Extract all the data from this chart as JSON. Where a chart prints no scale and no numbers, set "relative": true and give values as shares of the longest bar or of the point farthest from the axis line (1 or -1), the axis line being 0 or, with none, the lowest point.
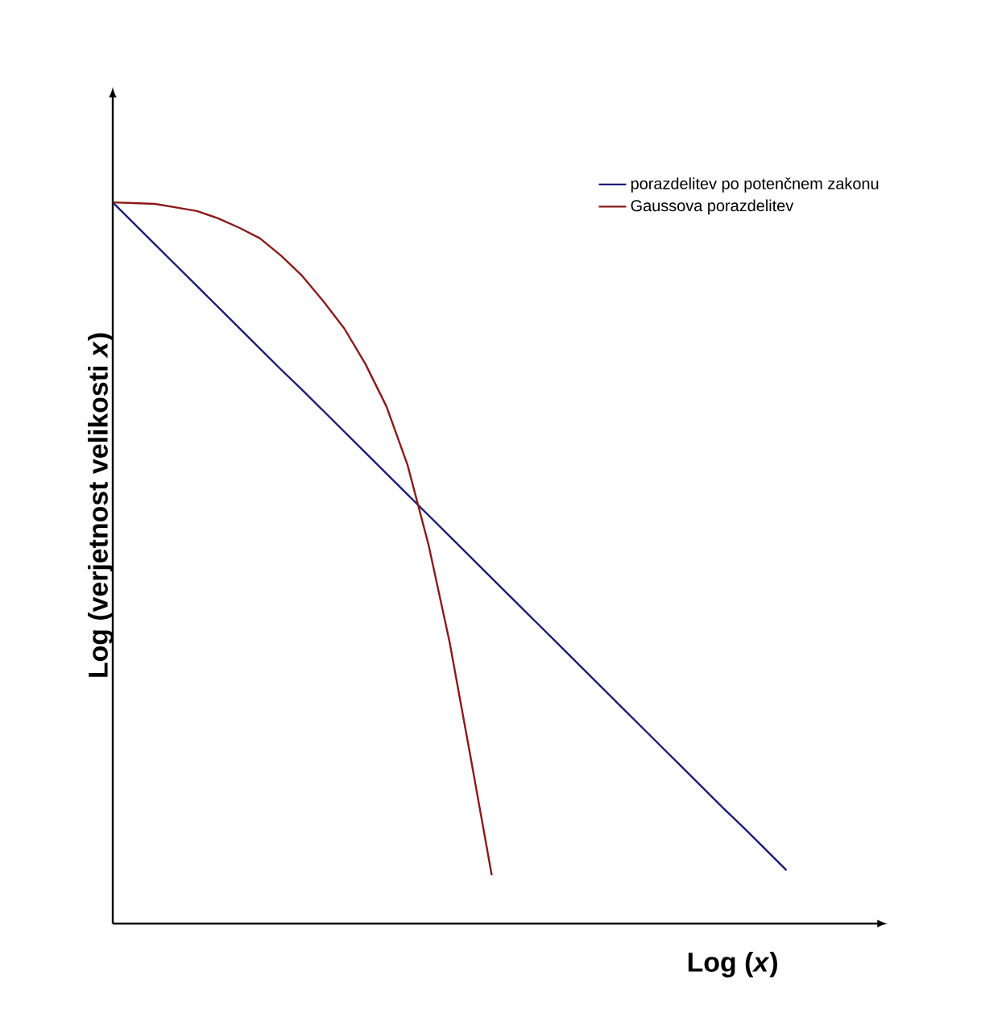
{
  "chart_data": {
    "type": "line",
    "relative": true,
    "xlabel": "Log (*x*)",
    "ylabel": "Log (verjetnost velikosti *x*)",
    "legend": "top right",
    "tick_labels": false,
    "categories": [
      null,
      null,
      null,
      null,
      null,
      null,
      null,
      null,
      null,
      null,
      null,
      null,
      null,
      null,
      null,
      null,
      null,
      null,
      null,
      null,
      null,
      null,
      null,
      null,
      null,
      null,
      null,
      null,
      null,
      null,
      null,
      null,
      null
    ],
    "series": [
      {
        "name": "porazdelitev po potenčnem zakonu",
        "color": "#1c1c78",
        "values": [
          1,
          0.971,
          0.942,
          0.913,
          0.884,
          0.855,
          0.826,
          0.797,
          0.768,
          0.74,
          0.711,
          0.682,
          0.653,
          0.624,
          0.595,
          0.566,
          0.537,
          0.508,
          0.479,
          0.45,
          0.421,
          0.392,
          0.363,
          0.334,
          0.305,
          0.276,
          0.247,
          0.218,
          0.189,
          0.16,
          0.132,
          0.103,
          0.074
        ]
      },
      {
        "name": "Gaussova porazdelitev",
        "color": "#8b1a1a",
        "values": [
          1,
          0.999,
          0.998,
          0.993,
          0.988,
          0.978,
          0.965,
          0.95,
          0.926,
          0.898,
          0.863,
          0.825,
          0.776,
          0.717,
          0.636,
          0.525,
          0.39,
          0.23,
          0.067,
          null,
          null,
          null,
          null,
          null,
          null,
          null,
          null,
          null,
          null,
          null,
          null,
          null,
          null
        ]
      }
    ]
  }
}
